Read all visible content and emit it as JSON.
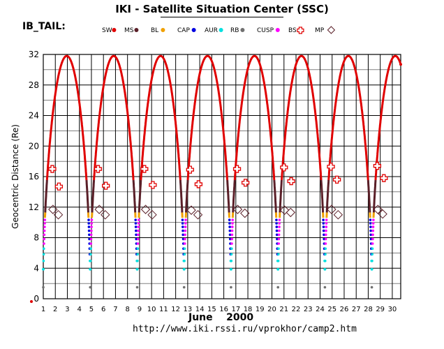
{
  "title": "IKI - Satellite Situation Center (SSC)",
  "subtitle_left": "IB_TAIL:",
  "footer": {
    "month": "June",
    "year": "2000",
    "url": "http://www.iki.rssi.ru/vprokhor/camp2.htm"
  },
  "legend": [
    {
      "label": "SW",
      "color": "#e00000",
      "marker": "dot"
    },
    {
      "label": "MS",
      "color": "#5a1f28",
      "marker": "dot"
    },
    {
      "label": "BL",
      "color": "#f0a000",
      "marker": "dot"
    },
    {
      "label": "CAP",
      "color": "#0000e0",
      "marker": "dot"
    },
    {
      "label": "AUR",
      "color": "#00e0e0",
      "marker": "dot"
    },
    {
      "label": "RB",
      "color": "#707070",
      "marker": "dot"
    },
    {
      "label": "CUSP",
      "color": "#ff00ff",
      "marker": "dot"
    },
    {
      "label": "BS",
      "color": "#e00000",
      "marker": "plus-box"
    },
    {
      "label": "MP",
      "color": "#5a1f28",
      "marker": "diamond"
    }
  ],
  "chart_data": {
    "type": "line",
    "ylabel": "Geocentric Distance (Re)",
    "xlabel": "June 2000",
    "xlim": [
      1,
      30.7
    ],
    "ylim": [
      0,
      32
    ],
    "yticks": [
      0,
      4,
      8,
      12,
      16,
      20,
      24,
      28,
      32
    ],
    "xticks": [
      1,
      2,
      3,
      4,
      5,
      6,
      7,
      8,
      9,
      10,
      11,
      12,
      13,
      14,
      15,
      16,
      17,
      18,
      19,
      20,
      21,
      22,
      23,
      24,
      25,
      26,
      27,
      28,
      29,
      30
    ],
    "grid": true,
    "orbit": {
      "apogee_re": 31.8,
      "perigee_re": 1.5,
      "perigee_days": [
        1.0,
        4.9,
        8.8,
        12.7,
        16.6,
        20.5,
        24.4,
        28.3
      ],
      "period_days": 3.9
    },
    "apogee_days": [
      4.15,
      7.9,
      11.55,
      15.3,
      19.0,
      22.75,
      26.5,
      30.15
    ],
    "bow_shock_crossings": [
      {
        "day": 1.75,
        "r": 17.0
      },
      {
        "day": 2.3,
        "r": 14.7
      },
      {
        "day": 5.55,
        "r": 17.0
      },
      {
        "day": 6.2,
        "r": 14.8
      },
      {
        "day": 9.4,
        "r": 17.0
      },
      {
        "day": 10.1,
        "r": 14.9
      },
      {
        "day": 13.2,
        "r": 16.9
      },
      {
        "day": 13.9,
        "r": 15.0
      },
      {
        "day": 17.1,
        "r": 17.0
      },
      {
        "day": 17.8,
        "r": 15.2
      },
      {
        "day": 21.0,
        "r": 17.2
      },
      {
        "day": 21.6,
        "r": 15.4
      },
      {
        "day": 24.9,
        "r": 17.3
      },
      {
        "day": 25.4,
        "r": 15.6
      },
      {
        "day": 28.75,
        "r": 17.4
      },
      {
        "day": 29.3,
        "r": 15.8
      }
    ],
    "magnetopause_crossings": [
      {
        "day": 1.8,
        "r": 11.7
      },
      {
        "day": 2.25,
        "r": 11.0
      },
      {
        "day": 5.65,
        "r": 11.7
      },
      {
        "day": 6.15,
        "r": 11.0
      },
      {
        "day": 9.5,
        "r": 11.7
      },
      {
        "day": 10.05,
        "r": 11.0
      },
      {
        "day": 13.3,
        "r": 11.6
      },
      {
        "day": 13.85,
        "r": 11.0
      },
      {
        "day": 17.15,
        "r": 11.7
      },
      {
        "day": 17.75,
        "r": 11.2
      },
      {
        "day": 21.05,
        "r": 11.6
      },
      {
        "day": 21.55,
        "r": 11.3
      },
      {
        "day": 24.95,
        "r": 11.7
      },
      {
        "day": 25.5,
        "r": 11.0
      },
      {
        "day": 28.8,
        "r": 11.7
      },
      {
        "day": 29.2,
        "r": 11.1
      }
    ],
    "inbound_region_bands_re": [
      {
        "region": "CAP",
        "from": 11,
        "to": 5
      },
      {
        "region": "AUR",
        "from": 5,
        "to": 3
      },
      {
        "region": "RB",
        "from": 3,
        "to": 1.5
      }
    ],
    "outbound_region_bands_re": [
      {
        "region": "RB",
        "from": 1.5,
        "to": 3
      },
      {
        "region": "AUR",
        "from": 3,
        "to": 7
      },
      {
        "region": "CUSP",
        "from": 7,
        "to": 10.5
      }
    ]
  },
  "colors": {
    "SW": "#e00000",
    "MS": "#5a1f28",
    "BL": "#f0a000",
    "CAP": "#0000e0",
    "AUR": "#00e0e0",
    "RB": "#707070",
    "CUSP": "#ff00ff",
    "BS": "#e00000",
    "MP": "#5a1f28"
  }
}
